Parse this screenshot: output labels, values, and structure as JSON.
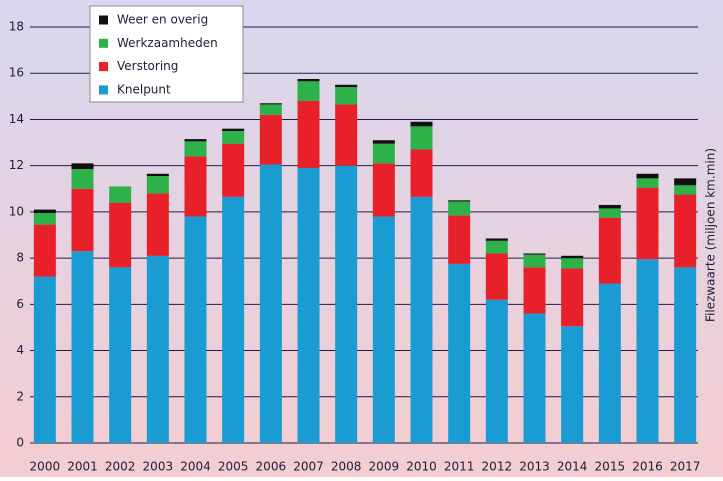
{
  "chart_data": {
    "type": "stacked_bar",
    "y_label": "Filezwaarte (miljoen km.min)",
    "categories": [
      "2000",
      "2001",
      "2002",
      "2003",
      "2004",
      "2005",
      "2006",
      "2007",
      "2008",
      "2009",
      "2010",
      "2011",
      "2012",
      "2013",
      "2014",
      "2015",
      "2016",
      "2017"
    ],
    "series": [
      {
        "name": "Knelpunt",
        "color": "#1a9bd1",
        "values": [
          7.2,
          8.3,
          7.6,
          8.1,
          9.8,
          10.65,
          12.05,
          11.9,
          12.0,
          9.8,
          10.65,
          7.75,
          6.2,
          5.6,
          5.05,
          6.9,
          7.95,
          7.6
        ]
      },
      {
        "name": "Verstoring",
        "color": "#e8202a",
        "values": [
          2.25,
          2.7,
          2.8,
          2.7,
          2.6,
          2.3,
          2.15,
          2.9,
          2.65,
          2.3,
          2.05,
          2.1,
          2.0,
          2.0,
          2.5,
          2.85,
          3.1,
          3.15
        ]
      },
      {
        "name": "Werkzaamheden",
        "color": "#2db24a",
        "values": [
          0.5,
          0.85,
          0.7,
          0.75,
          0.65,
          0.55,
          0.45,
          0.85,
          0.75,
          0.85,
          1.0,
          0.6,
          0.55,
          0.55,
          0.45,
          0.4,
          0.4,
          0.4
        ]
      },
      {
        "name": "Weer en overig",
        "color": "#111111",
        "values": [
          0.15,
          0.25,
          0,
          0.1,
          0.1,
          0.1,
          0.05,
          0.1,
          0.1,
          0.15,
          0.2,
          0.05,
          0.1,
          0.05,
          0.1,
          0.15,
          0.2,
          0.3
        ]
      }
    ],
    "ylim": [
      0,
      18
    ],
    "yticks": [
      0,
      2,
      4,
      6,
      8,
      10,
      12,
      14,
      16,
      18
    ],
    "grid": true,
    "legend": "upper left"
  }
}
